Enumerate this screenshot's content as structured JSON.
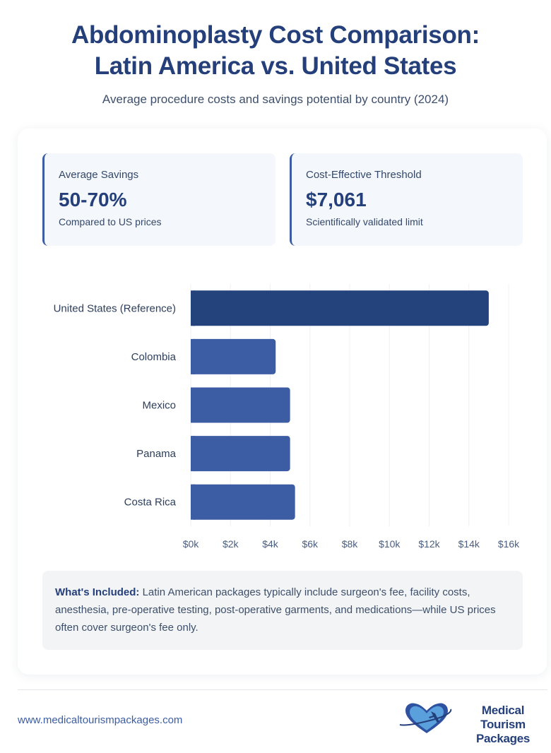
{
  "header": {
    "title_line1": "Abdominoplasty Cost Comparison:",
    "title_line2": "Latin America vs. United States",
    "subtitle": "Average procedure costs and savings potential by country (2024)"
  },
  "stats": [
    {
      "label": "Average Savings",
      "value": "50-70%",
      "sub": "Compared to US prices"
    },
    {
      "label": "Cost-Effective Threshold",
      "value": "$7,061",
      "sub": "Scientifically validated limit"
    }
  ],
  "colors": {
    "reference_bar": "#24427c",
    "country_bar": "#3c5ca3",
    "accent": "#243f7a",
    "grid": "#eef0f3"
  },
  "chart_data": {
    "type": "bar",
    "orientation": "horizontal",
    "title": "",
    "xlabel": "",
    "ylabel": "",
    "categories": [
      "United States (Reference)",
      "Colombia",
      "Mexico",
      "Panama",
      "Costa Rica"
    ],
    "values": [
      15000,
      4275,
      5000,
      5000,
      5250
    ],
    "xlim": [
      0,
      16000
    ],
    "x_ticks": [
      0,
      2000,
      4000,
      6000,
      8000,
      10000,
      12000,
      14000,
      16000
    ],
    "x_tick_labels": [
      "$0k",
      "$2k",
      "$4k",
      "$6k",
      "$8k",
      "$10k",
      "$12k",
      "$14k",
      "$16k"
    ],
    "grid": true,
    "legend": "none"
  },
  "note": {
    "bold": "What's Included:",
    "text": " Latin American packages typically include surgeon's fee, facility costs, anesthesia, pre-operative testing, post-operative garments, and medications—while US prices often cover surgeon's fee only."
  },
  "footer": {
    "url": "www.medicaltourismpackages.com",
    "logo_line1": "Medical Tourism",
    "logo_line2": "Packages"
  }
}
